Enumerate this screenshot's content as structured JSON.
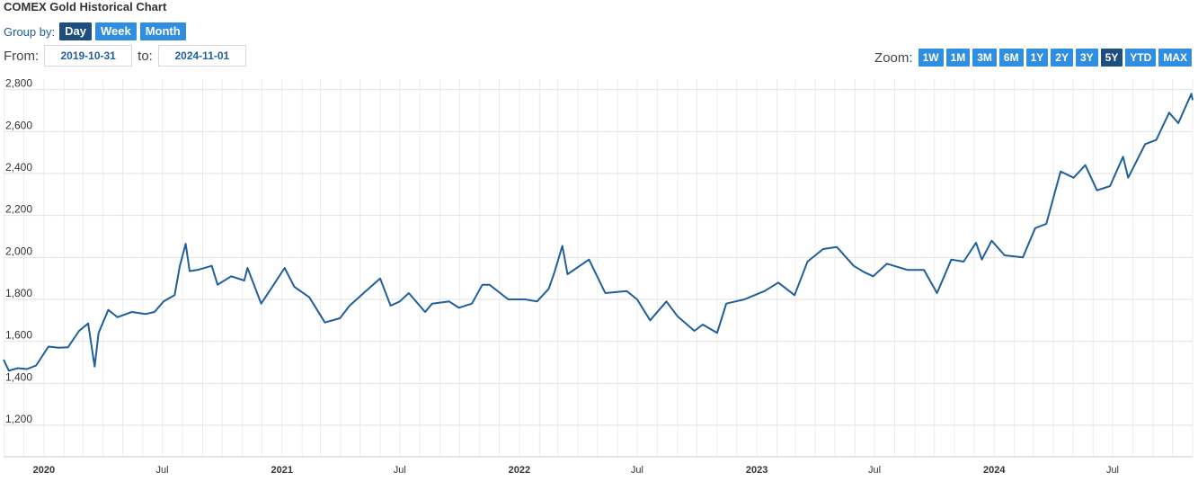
{
  "header": {
    "title": "COMEX Gold Historical Chart"
  },
  "groupby": {
    "label": "Group by:",
    "buttons": [
      {
        "label": "Day",
        "active": true
      },
      {
        "label": "Week",
        "active": false
      },
      {
        "label": "Month",
        "active": false
      }
    ]
  },
  "range": {
    "from_label": "From:",
    "from_value": "2019-10-31",
    "to_label": "to:",
    "to_value": "2024-11-01"
  },
  "zoom": {
    "label": "Zoom:",
    "buttons": [
      {
        "label": "1W",
        "active": false
      },
      {
        "label": "1M",
        "active": false
      },
      {
        "label": "3M",
        "active": false
      },
      {
        "label": "6M",
        "active": false
      },
      {
        "label": "1Y",
        "active": false
      },
      {
        "label": "2Y",
        "active": false
      },
      {
        "label": "3Y",
        "active": false
      },
      {
        "label": "5Y",
        "active": true
      },
      {
        "label": "YTD",
        "active": false
      },
      {
        "label": "MAX",
        "active": false
      }
    ]
  },
  "colors": {
    "line": "#1f5f9c",
    "button": "#2f8ee0",
    "button_active": "#1e4e7e"
  },
  "chart_data": {
    "type": "line",
    "title": "",
    "xlabel": "",
    "ylabel": "",
    "x_range": [
      "2019-10-31",
      "2024-11-01"
    ],
    "ylim": [
      1050,
      2850
    ],
    "y_ticks": [
      1200,
      1400,
      1600,
      1800,
      2000,
      2200,
      2400,
      2600,
      2800
    ],
    "y_tick_labels": [
      "1,200",
      "1,400",
      "1,600",
      "1,800",
      "2,000",
      "2,200",
      "2,400",
      "2,600",
      "2,800"
    ],
    "x_ticks": [
      {
        "date": "2020-01-01",
        "label": "2020",
        "year": true
      },
      {
        "date": "2020-07-01",
        "label": "Jul",
        "year": false
      },
      {
        "date": "2021-01-01",
        "label": "2021",
        "year": true
      },
      {
        "date": "2021-07-01",
        "label": "Jul",
        "year": false
      },
      {
        "date": "2022-01-01",
        "label": "2022",
        "year": true
      },
      {
        "date": "2022-07-01",
        "label": "Jul",
        "year": false
      },
      {
        "date": "2023-01-01",
        "label": "2023",
        "year": true
      },
      {
        "date": "2023-07-01",
        "label": "Jul",
        "year": false
      },
      {
        "date": "2024-01-01",
        "label": "2024",
        "year": true
      },
      {
        "date": "2024-07-01",
        "label": "Jul",
        "year": false
      }
    ],
    "grid": true,
    "series": [
      {
        "name": "",
        "x": [
          "2019-10-31",
          "2019-11-08",
          "2019-11-22",
          "2019-12-06",
          "2019-12-20",
          "2020-01-08",
          "2020-01-24",
          "2020-02-07",
          "2020-02-24",
          "2020-03-09",
          "2020-03-19",
          "2020-03-25",
          "2020-04-09",
          "2020-04-23",
          "2020-05-15",
          "2020-06-05",
          "2020-06-19",
          "2020-07-03",
          "2020-07-20",
          "2020-07-28",
          "2020-08-06",
          "2020-08-12",
          "2020-08-24",
          "2020-09-15",
          "2020-09-24",
          "2020-10-15",
          "2020-11-04",
          "2020-11-09",
          "2020-11-30",
          "2020-12-15",
          "2021-01-05",
          "2021-01-20",
          "2021-02-12",
          "2021-03-08",
          "2021-03-31",
          "2021-04-15",
          "2021-05-10",
          "2021-06-01",
          "2021-06-17",
          "2021-07-01",
          "2021-07-15",
          "2021-08-09",
          "2021-08-20",
          "2021-09-15",
          "2021-09-30",
          "2021-10-20",
          "2021-11-05",
          "2021-11-16",
          "2021-12-15",
          "2022-01-10",
          "2022-01-28",
          "2022-02-15",
          "2022-02-24",
          "2022-03-08",
          "2022-03-16",
          "2022-04-18",
          "2022-05-13",
          "2022-06-15",
          "2022-07-01",
          "2022-07-21",
          "2022-08-15",
          "2022-09-01",
          "2022-09-27",
          "2022-10-10",
          "2022-11-01",
          "2022-11-15",
          "2022-12-13",
          "2023-01-13",
          "2023-02-03",
          "2023-02-28",
          "2023-03-20",
          "2023-04-13",
          "2023-05-04",
          "2023-05-30",
          "2023-06-15",
          "2023-06-29",
          "2023-07-20",
          "2023-08-21",
          "2023-09-15",
          "2023-10-05",
          "2023-10-27",
          "2023-11-15",
          "2023-12-04",
          "2023-12-13",
          "2023-12-28",
          "2024-01-17",
          "2024-02-14",
          "2024-03-04",
          "2024-03-21",
          "2024-04-12",
          "2024-05-02",
          "2024-05-20",
          "2024-06-07",
          "2024-06-27",
          "2024-07-17",
          "2024-07-25",
          "2024-08-20",
          "2024-09-06",
          "2024-09-26",
          "2024-10-10",
          "2024-10-30",
          "2024-11-01"
        ],
        "y": [
          1513,
          1460,
          1472,
          1468,
          1485,
          1575,
          1570,
          1572,
          1650,
          1685,
          1480,
          1640,
          1750,
          1715,
          1740,
          1730,
          1740,
          1790,
          1820,
          1960,
          2065,
          1935,
          1940,
          1960,
          1870,
          1910,
          1890,
          1950,
          1780,
          1850,
          1950,
          1860,
          1810,
          1690,
          1710,
          1770,
          1840,
          1900,
          1770,
          1790,
          1830,
          1740,
          1780,
          1790,
          1760,
          1780,
          1870,
          1870,
          1800,
          1800,
          1790,
          1850,
          1930,
          2055,
          1920,
          1990,
          1830,
          1840,
          1800,
          1700,
          1790,
          1720,
          1650,
          1680,
          1640,
          1780,
          1800,
          1840,
          1880,
          1820,
          1980,
          2040,
          2050,
          1960,
          1930,
          1910,
          1970,
          1940,
          1940,
          1830,
          1990,
          1980,
          2070,
          1990,
          2080,
          2010,
          2000,
          2140,
          2160,
          2410,
          2380,
          2440,
          2320,
          2340,
          2480,
          2380,
          2540,
          2560,
          2690,
          2640,
          2780,
          2750
        ]
      }
    ]
  }
}
